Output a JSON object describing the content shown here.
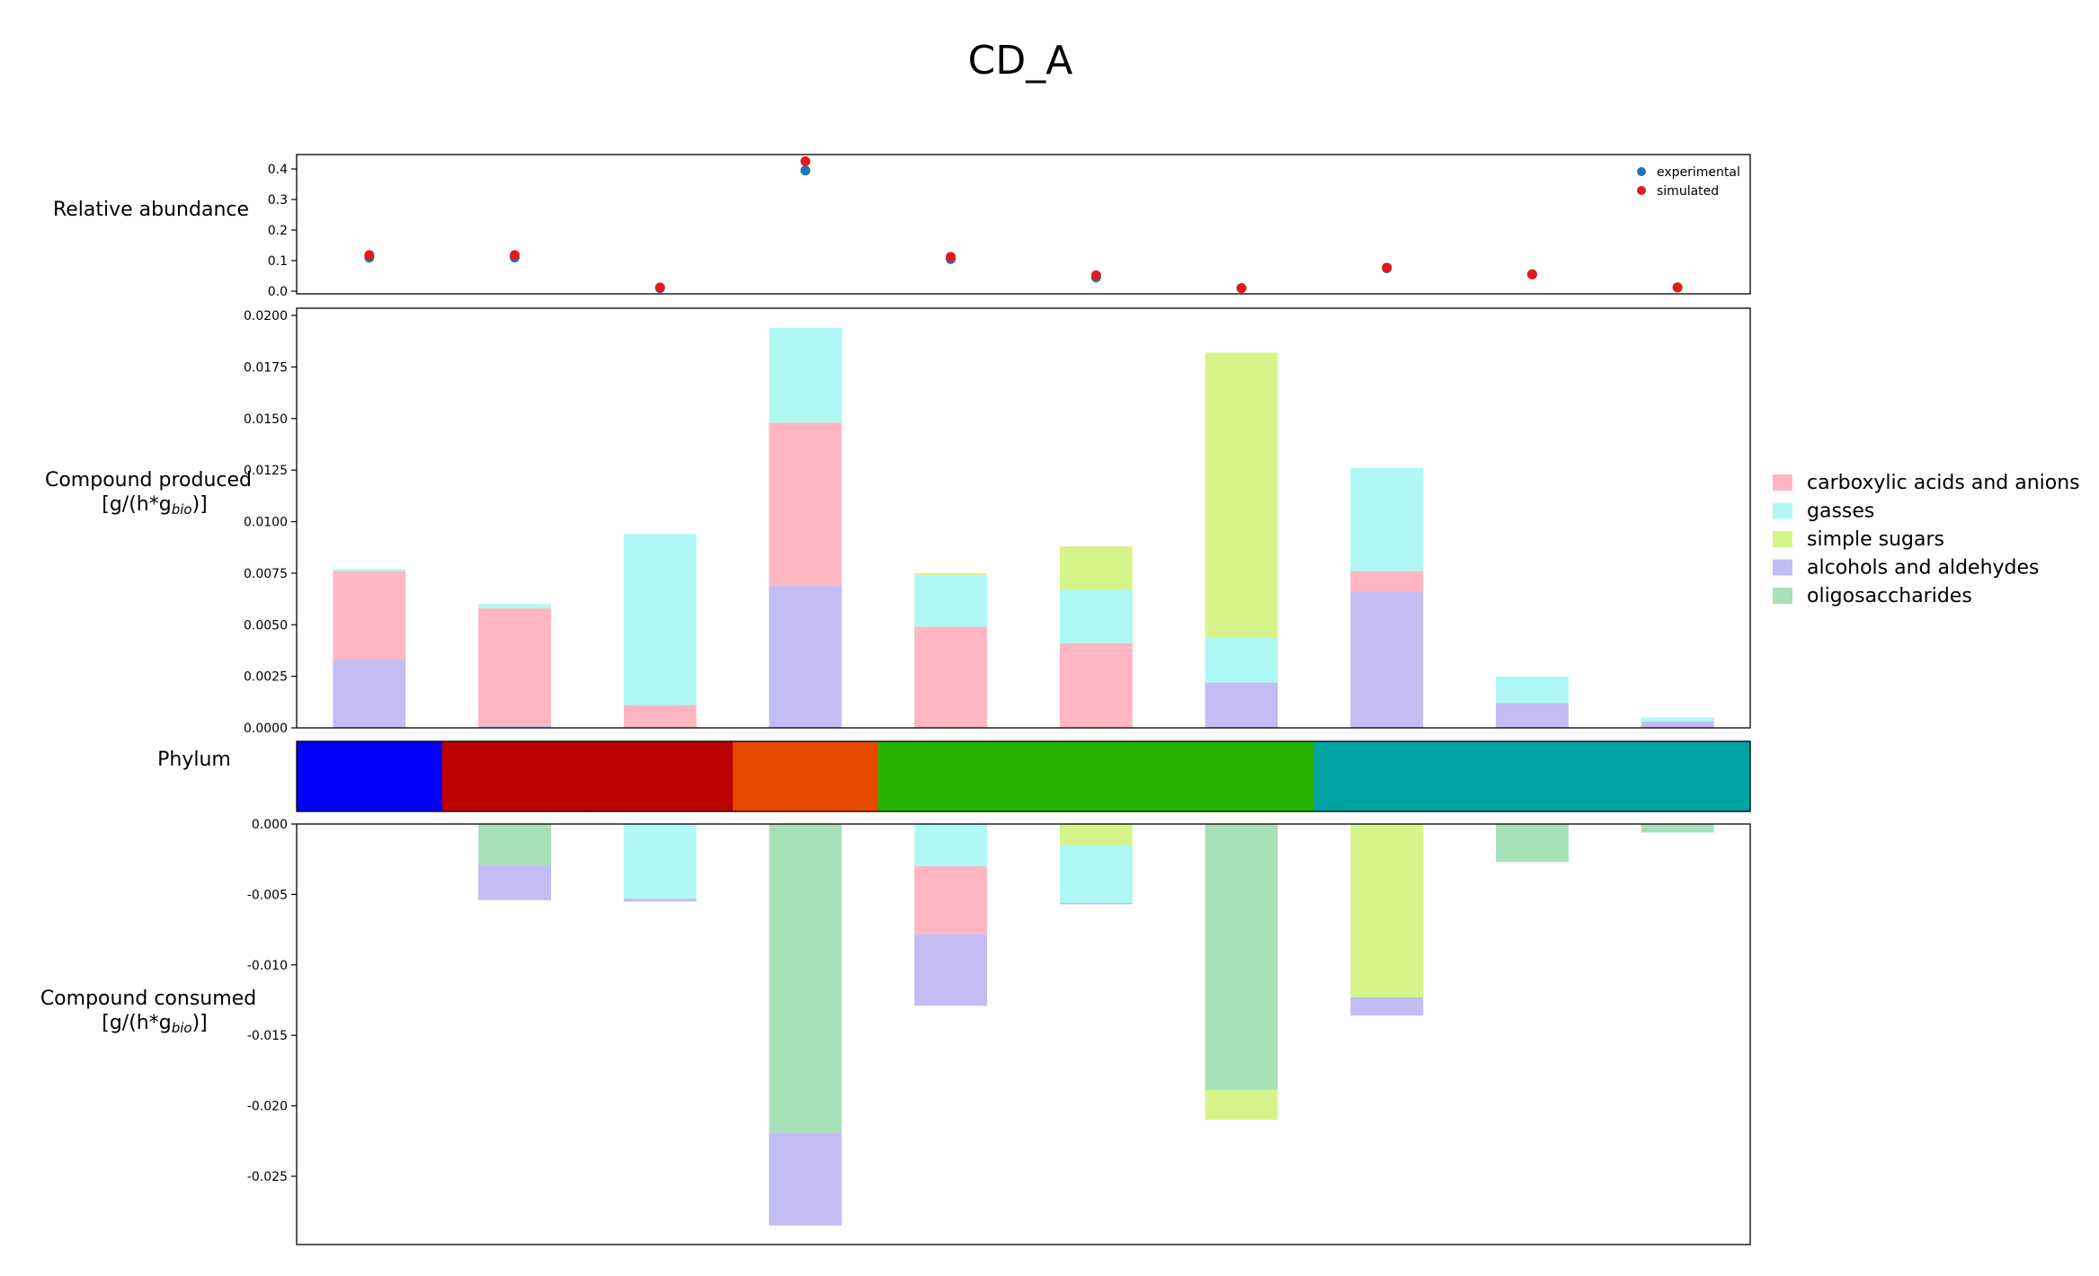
{
  "title": "CD_A",
  "panels": {
    "abundance": {
      "label": "Relative abundance",
      "ticks": [
        "0.0",
        "0.1",
        "0.2",
        "0.3",
        "0.4"
      ],
      "ylim": [
        0,
        0.45
      ]
    },
    "produced": {
      "label_line1": "Compound produced",
      "label_line2_pre": "[g/(h*g",
      "label_line2_sub": "bio",
      "label_line2_post": ")]",
      "ticks": [
        "0.0000",
        "0.0025",
        "0.0050",
        "0.0075",
        "0.0100",
        "0.0125",
        "0.0150",
        "0.0175",
        "0.0200"
      ],
      "ylim": [
        0,
        0.0204
      ]
    },
    "phylum": {
      "label": "Phylum"
    },
    "consumed": {
      "label_line1": "Compound consumed",
      "label_line2_pre": "[g/(h*g",
      "label_line2_sub": "bio",
      "label_line2_post": ")]",
      "ticks": [
        "0.000",
        "-0.005",
        "-0.010",
        "-0.015",
        "-0.020",
        "-0.025"
      ],
      "ylim": [
        -0.0298,
        0
      ]
    }
  },
  "colors": {
    "carboxylic": "#ffb6c1",
    "gasses": "#aff8f3",
    "sugars": "#d5f58a",
    "alcohols": "#c3bdf4",
    "oligo": "#a8e0b8",
    "experimental": "#1f77b4",
    "simulated": "#e31a1c"
  },
  "legend_main": {
    "items": [
      {
        "key": "carboxylic",
        "label": "carboxylic acids and anions"
      },
      {
        "key": "gasses",
        "label": "gasses"
      },
      {
        "key": "sugars",
        "label": "simple sugars"
      },
      {
        "key": "alcohols",
        "label": "alcohols and aldehydes"
      },
      {
        "key": "oligo",
        "label": "oligosaccharides"
      }
    ]
  },
  "legend_abundance": {
    "items": [
      {
        "key": "experimental",
        "label": "experimental"
      },
      {
        "key": "simulated",
        "label": "simulated"
      }
    ]
  },
  "chart_data": [
    {
      "type": "scatter",
      "ylabel": "Relative abundance",
      "ylim": [
        0,
        0.45
      ],
      "x": [
        1,
        2,
        3,
        4,
        5,
        6,
        7,
        8,
        9,
        10
      ],
      "series": [
        {
          "name": "experimental",
          "values": [
            0.11,
            0.11,
            0.01,
            0.395,
            0.105,
            0.045,
            0.01,
            0.075,
            0.055,
            0.012
          ]
        },
        {
          "name": "simulated",
          "values": [
            0.118,
            0.118,
            0.012,
            0.425,
            0.112,
            0.052,
            0.01,
            0.077,
            0.055,
            0.012
          ]
        }
      ],
      "legend": "top-right"
    },
    {
      "type": "bar",
      "stacked": true,
      "ylabel": "Compound produced [g/(h*g_bio)]",
      "ylim": [
        0,
        0.0204
      ],
      "x": [
        1,
        2,
        3,
        4,
        5,
        6,
        7,
        8,
        9,
        10
      ],
      "series": [
        {
          "name": "alcohols and aldehydes",
          "values": [
            0.0033,
            0.0001,
            0,
            0.0069,
            0,
            0,
            0.0022,
            0.0066,
            0.0012,
            0.0003
          ]
        },
        {
          "name": "carboxylic acids and anions",
          "values": [
            0.0043,
            0.0057,
            0.0011,
            0.0079,
            0.0049,
            0.0041,
            0,
            0.001,
            0,
            0
          ]
        },
        {
          "name": "gasses",
          "values": [
            0.0001,
            0.0002,
            0.0083,
            0.0046,
            0.0025,
            0.0026,
            0.0022,
            0.005,
            0.0013,
            0.0002
          ]
        },
        {
          "name": "simple sugars",
          "values": [
            0,
            0,
            0,
            0,
            0.0001,
            0.0021,
            0.0138,
            0,
            0,
            0
          ]
        }
      ],
      "legend": "right"
    },
    {
      "type": "bar",
      "role": "Phylum",
      "x": [
        1,
        2,
        3,
        4,
        5,
        6,
        7,
        8,
        9,
        10
      ],
      "values": [
        "#0000ff",
        "#bb0000",
        "#bb0000",
        "#e84800",
        "#26b300",
        "#26b300",
        "#26b300",
        "#00a3a3",
        "#00a3a3",
        "#00a3a3"
      ]
    },
    {
      "type": "bar",
      "stacked": true,
      "ylabel": "Compound consumed [g/(h*g_bio)]",
      "ylim": [
        -0.0298,
        0
      ],
      "x": [
        1,
        2,
        3,
        4,
        5,
        6,
        7,
        8,
        9,
        10
      ],
      "series": [
        {
          "name": "oligosaccharides",
          "values": [
            0,
            -0.0029,
            0,
            -0.0219,
            0,
            0,
            -0.0189,
            0,
            -0.0027,
            -0.0006
          ]
        },
        {
          "name": "simple sugars",
          "values": [
            0,
            0,
            0,
            0,
            0,
            -0.0015,
            -0.0021,
            -0.0123,
            0,
            0
          ]
        },
        {
          "name": "gasses",
          "values": [
            0,
            0,
            -0.0053,
            0,
            -0.003,
            -0.0041,
            0,
            0,
            0,
            0
          ]
        },
        {
          "name": "carboxylic acids and anions",
          "values": [
            0,
            0,
            0,
            0,
            -0.0048,
            0,
            0,
            0,
            0,
            0
          ]
        },
        {
          "name": "alcohols and aldehydes",
          "values": [
            0,
            -0.0025,
            -0.0002,
            -0.0066,
            -0.0051,
            -0.0001,
            0,
            -0.0013,
            0,
            0
          ]
        }
      ]
    }
  ]
}
